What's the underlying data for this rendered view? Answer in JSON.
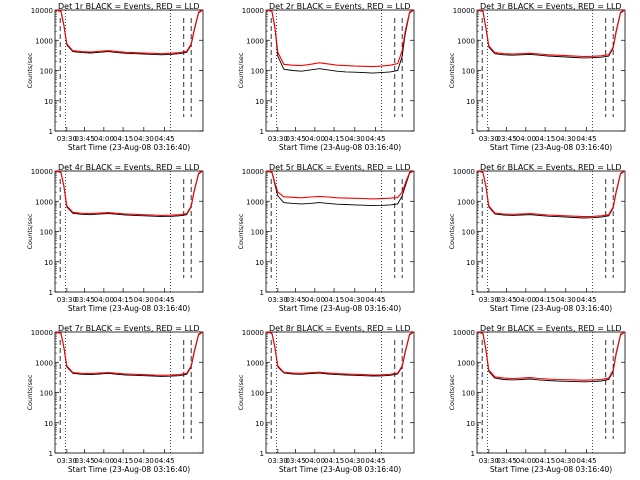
{
  "chart_data": [
    {
      "type": "line",
      "title": "Det 1r BLACK = Events, RED = LLD",
      "xlabel": "Start Time (23-Aug-08 03:16:40)",
      "ylabel": "Counts/sec",
      "xticks": [
        "03:30",
        "03:45",
        "04:00",
        "04:15",
        "04:30",
        "04:45"
      ],
      "yticks": [
        "1",
        "10",
        "100",
        "1000",
        "10000"
      ],
      "ylim": [
        1,
        10000
      ],
      "yscale": "log",
      "series": [
        {
          "color": "#000000",
          "x": [
            0,
            4,
            6,
            8,
            12,
            18,
            24,
            30,
            36,
            42,
            48,
            54,
            60,
            66,
            72,
            78,
            84,
            89,
            92,
            94,
            97,
            100
          ],
          "values": [
            10000,
            9000,
            3000,
            700,
            420,
            390,
            380,
            400,
            420,
            390,
            370,
            360,
            350,
            340,
            330,
            340,
            360,
            400,
            700,
            2000,
            8000,
            10000
          ]
        },
        {
          "color": "#ff0000",
          "x": [
            0,
            4,
            6,
            8,
            12,
            18,
            24,
            30,
            36,
            42,
            48,
            54,
            60,
            66,
            72,
            78,
            84,
            89,
            92,
            94,
            97,
            100
          ],
          "values": [
            10000,
            9400,
            3200,
            760,
            450,
            420,
            410,
            430,
            450,
            420,
            400,
            390,
            380,
            370,
            360,
            370,
            390,
            430,
            760,
            2200,
            8500,
            10000
          ]
        }
      ]
    },
    {
      "type": "line",
      "title": "Det 2r BLACK = Events, RED = LLD",
      "xlabel": "Start Time (23-Aug-08 03:16:40)",
      "ylabel": "Counts/sec",
      "xticks": [
        "03:30",
        "03:45",
        "04:00",
        "04:15",
        "04:30",
        "04:45"
      ],
      "yticks": [
        "1",
        "10",
        "100",
        "1000",
        "10000"
      ],
      "ylim": [
        1,
        10000
      ],
      "yscale": "log",
      "series": [
        {
          "color": "#000000",
          "x": [
            0,
            4,
            6,
            8,
            12,
            18,
            24,
            30,
            36,
            42,
            48,
            54,
            60,
            66,
            72,
            78,
            84,
            89,
            92,
            94,
            97,
            100
          ],
          "values": [
            10000,
            9000,
            2500,
            300,
            110,
            100,
            95,
            105,
            115,
            105,
            95,
            90,
            88,
            85,
            82,
            85,
            90,
            100,
            300,
            1500,
            8000,
            10000
          ]
        },
        {
          "color": "#ff0000",
          "x": [
            0,
            4,
            6,
            8,
            12,
            18,
            24,
            30,
            36,
            42,
            48,
            54,
            60,
            66,
            72,
            78,
            84,
            89,
            92,
            94,
            97,
            100
          ],
          "values": [
            10000,
            9300,
            2800,
            400,
            160,
            150,
            145,
            160,
            180,
            165,
            150,
            145,
            140,
            138,
            135,
            140,
            150,
            170,
            450,
            1900,
            8600,
            10000
          ]
        }
      ]
    },
    {
      "type": "line",
      "title": "Det 3r BLACK = Events, RED = LLD",
      "xlabel": "Start Time (23-Aug-08 03:16:40)",
      "ylabel": "Counts/sec",
      "xticks": [
        "03:30",
        "03:45",
        "04:00",
        "04:15",
        "04:30",
        "04:45"
      ],
      "yticks": [
        "1",
        "10",
        "100",
        "1000",
        "10000"
      ],
      "ylim": [
        1,
        10000
      ],
      "yscale": "log",
      "series": [
        {
          "color": "#000000",
          "x": [
            0,
            4,
            6,
            8,
            12,
            18,
            24,
            30,
            36,
            42,
            48,
            54,
            60,
            66,
            72,
            78,
            84,
            89,
            92,
            94,
            97,
            100
          ],
          "values": [
            10000,
            9000,
            2500,
            600,
            360,
            330,
            320,
            330,
            340,
            320,
            300,
            290,
            280,
            270,
            260,
            265,
            275,
            300,
            550,
            1800,
            8000,
            10000
          ]
        },
        {
          "color": "#ff0000",
          "x": [
            0,
            4,
            6,
            8,
            12,
            18,
            24,
            30,
            36,
            42,
            48,
            54,
            60,
            66,
            72,
            78,
            84,
            89,
            92,
            94,
            97,
            100
          ],
          "values": [
            10000,
            9300,
            2700,
            650,
            390,
            360,
            350,
            360,
            370,
            350,
            330,
            320,
            310,
            300,
            290,
            295,
            305,
            330,
            600,
            2000,
            8500,
            10000
          ]
        }
      ]
    },
    {
      "type": "line",
      "title": "Det 4r BLACK = Events, RED = LLD",
      "xlabel": "Start Time (23-Aug-08 03:16:40)",
      "ylabel": "Counts/sec",
      "xticks": [
        "03:30",
        "03:45",
        "04:00",
        "04:15",
        "04:30",
        "04:45"
      ],
      "yticks": [
        "1",
        "10",
        "100",
        "1000",
        "10000"
      ],
      "ylim": [
        1,
        10000
      ],
      "yscale": "log",
      "series": [
        {
          "color": "#000000",
          "x": [
            0,
            4,
            6,
            8,
            12,
            18,
            24,
            30,
            36,
            42,
            48,
            54,
            60,
            66,
            72,
            78,
            84,
            89,
            92,
            94,
            97,
            100
          ],
          "values": [
            10000,
            9000,
            3000,
            650,
            400,
            370,
            360,
            375,
            390,
            370,
            350,
            340,
            330,
            320,
            310,
            315,
            330,
            360,
            650,
            2000,
            8000,
            10000
          ]
        },
        {
          "color": "#ff0000",
          "x": [
            0,
            4,
            6,
            8,
            12,
            18,
            24,
            30,
            36,
            42,
            48,
            54,
            60,
            66,
            72,
            78,
            84,
            89,
            92,
            94,
            97,
            100
          ],
          "values": [
            10000,
            9300,
            3200,
            700,
            430,
            400,
            390,
            405,
            420,
            400,
            380,
            370,
            360,
            350,
            340,
            345,
            360,
            390,
            700,
            2200,
            8500,
            10000
          ]
        }
      ]
    },
    {
      "type": "line",
      "title": "Det 5r BLACK = Events, RED = LLD",
      "xlabel": "Start Time (23-Aug-08 03:16:40)",
      "ylabel": "Counts/sec",
      "xticks": [
        "03:30",
        "03:45",
        "04:00",
        "04:15",
        "04:30",
        "04:45"
      ],
      "yticks": [
        "1",
        "10",
        "100",
        "1000",
        "10000"
      ],
      "ylim": [
        1,
        10000
      ],
      "yscale": "log",
      "series": [
        {
          "color": "#000000",
          "x": [
            0,
            4,
            6,
            8,
            12,
            18,
            24,
            30,
            36,
            42,
            48,
            54,
            60,
            66,
            72,
            78,
            84,
            89,
            92,
            94,
            97,
            100
          ],
          "values": [
            10000,
            9000,
            3500,
            1500,
            900,
            850,
            820,
            850,
            900,
            850,
            800,
            780,
            760,
            740,
            720,
            730,
            760,
            820,
            1500,
            3000,
            8500,
            10000
          ]
        },
        {
          "color": "#ff0000",
          "x": [
            0,
            4,
            6,
            8,
            12,
            18,
            24,
            30,
            36,
            42,
            48,
            54,
            60,
            66,
            72,
            78,
            84,
            89,
            92,
            94,
            97,
            100
          ],
          "values": [
            10000,
            9500,
            4000,
            2000,
            1400,
            1350,
            1300,
            1380,
            1450,
            1380,
            1300,
            1270,
            1250,
            1230,
            1200,
            1220,
            1260,
            1330,
            2000,
            3800,
            9000,
            10000
          ]
        }
      ]
    },
    {
      "type": "line",
      "title": "Det 6r BLACK = Events, RED = LLD",
      "xlabel": "Start Time (23-Aug-08 03:16:40)",
      "ylabel": "Counts/sec",
      "xticks": [
        "03:30",
        "03:45",
        "04:00",
        "04:15",
        "04:30",
        "04:45"
      ],
      "yticks": [
        "1",
        "10",
        "100",
        "1000",
        "10000"
      ],
      "ylim": [
        1,
        10000
      ],
      "yscale": "log",
      "series": [
        {
          "color": "#000000",
          "x": [
            0,
            4,
            6,
            8,
            12,
            18,
            24,
            30,
            36,
            42,
            48,
            54,
            60,
            66,
            72,
            78,
            84,
            89,
            92,
            94,
            97,
            100
          ],
          "values": [
            10000,
            9000,
            3000,
            650,
            380,
            350,
            340,
            350,
            360,
            340,
            320,
            310,
            300,
            290,
            280,
            285,
            300,
            330,
            600,
            1900,
            8000,
            10000
          ]
        },
        {
          "color": "#ff0000",
          "x": [
            0,
            4,
            6,
            8,
            12,
            18,
            24,
            30,
            36,
            42,
            48,
            54,
            60,
            66,
            72,
            78,
            84,
            89,
            92,
            94,
            97,
            100
          ],
          "values": [
            10000,
            9300,
            3200,
            700,
            410,
            380,
            370,
            380,
            390,
            370,
            350,
            340,
            330,
            320,
            310,
            315,
            330,
            360,
            650,
            2100,
            8500,
            10000
          ]
        }
      ]
    },
    {
      "type": "line",
      "title": "Det 7r BLACK = Events, RED = LLD",
      "xlabel": "Start Time (23-Aug-08 03:16:40)",
      "ylabel": "Counts/sec",
      "xticks": [
        "03:30",
        "03:45",
        "04:00",
        "04:15",
        "04:30",
        "04:45"
      ],
      "yticks": [
        "1",
        "10",
        "100",
        "1000",
        "10000"
      ],
      "ylim": [
        1,
        10000
      ],
      "yscale": "log",
      "series": [
        {
          "color": "#000000",
          "x": [
            0,
            4,
            6,
            8,
            12,
            18,
            24,
            30,
            36,
            42,
            48,
            54,
            60,
            66,
            72,
            78,
            84,
            89,
            92,
            94,
            97,
            100
          ],
          "values": [
            10000,
            9000,
            3000,
            700,
            430,
            400,
            390,
            410,
            430,
            400,
            380,
            370,
            360,
            350,
            340,
            345,
            360,
            400,
            700,
            2000,
            8000,
            10000
          ]
        },
        {
          "color": "#ff0000",
          "x": [
            0,
            4,
            6,
            8,
            12,
            18,
            24,
            30,
            36,
            42,
            48,
            54,
            60,
            66,
            72,
            78,
            84,
            89,
            92,
            94,
            97,
            100
          ],
          "values": [
            10000,
            9300,
            3200,
            760,
            460,
            430,
            420,
            440,
            460,
            430,
            410,
            400,
            390,
            380,
            370,
            375,
            390,
            430,
            760,
            2200,
            8500,
            10000
          ]
        }
      ]
    },
    {
      "type": "line",
      "title": "Det 8r BLACK = Events, RED = LLD",
      "xlabel": "Start Time (23-Aug-08 03:16:40)",
      "ylabel": "Counts/sec",
      "xticks": [
        "03:30",
        "03:45",
        "04:00",
        "04:15",
        "04:30",
        "04:45"
      ],
      "yticks": [
        "1",
        "10",
        "100",
        "1000",
        "10000"
      ],
      "ylim": [
        1,
        10000
      ],
      "yscale": "log",
      "series": [
        {
          "color": "#000000",
          "x": [
            0,
            4,
            6,
            8,
            12,
            18,
            24,
            30,
            36,
            42,
            48,
            54,
            60,
            66,
            72,
            78,
            84,
            89,
            92,
            94,
            97,
            100
          ],
          "values": [
            10000,
            9000,
            3000,
            700,
            440,
            410,
            400,
            420,
            440,
            410,
            390,
            380,
            370,
            360,
            350,
            355,
            370,
            410,
            700,
            2000,
            8000,
            10000
          ]
        },
        {
          "color": "#ff0000",
          "x": [
            0,
            4,
            6,
            8,
            12,
            18,
            24,
            30,
            36,
            42,
            48,
            54,
            60,
            66,
            72,
            78,
            84,
            89,
            92,
            94,
            97,
            100
          ],
          "values": [
            10000,
            9300,
            3200,
            760,
            470,
            440,
            430,
            450,
            470,
            440,
            420,
            410,
            400,
            390,
            380,
            385,
            400,
            440,
            760,
            2200,
            8500,
            10000
          ]
        }
      ]
    },
    {
      "type": "line",
      "title": "Det 9r BLACK = Events, RED = LLD",
      "xlabel": "Start Time (23-Aug-08 03:16:40)",
      "ylabel": "Counts/sec",
      "xticks": [
        "03:30",
        "03:45",
        "04:00",
        "04:15",
        "04:30",
        "04:45"
      ],
      "yticks": [
        "1",
        "10",
        "100",
        "1000",
        "10000"
      ],
      "ylim": [
        1,
        10000
      ],
      "yscale": "log",
      "series": [
        {
          "color": "#000000",
          "x": [
            0,
            4,
            6,
            8,
            12,
            18,
            24,
            30,
            36,
            42,
            48,
            54,
            60,
            66,
            72,
            78,
            84,
            89,
            92,
            94,
            97,
            100
          ],
          "values": [
            10000,
            9000,
            2500,
            500,
            300,
            270,
            260,
            270,
            280,
            260,
            250,
            240,
            235,
            230,
            225,
            230,
            240,
            270,
            500,
            1800,
            8000,
            10000
          ]
        },
        {
          "color": "#ff0000",
          "x": [
            0,
            4,
            6,
            8,
            12,
            18,
            24,
            30,
            36,
            42,
            48,
            54,
            60,
            66,
            72,
            78,
            84,
            89,
            92,
            94,
            97,
            100
          ],
          "values": [
            10000,
            9300,
            2700,
            550,
            330,
            300,
            290,
            300,
            310,
            290,
            280,
            270,
            265,
            260,
            255,
            260,
            270,
            300,
            550,
            2000,
            8500,
            10000
          ]
        }
      ]
    }
  ]
}
